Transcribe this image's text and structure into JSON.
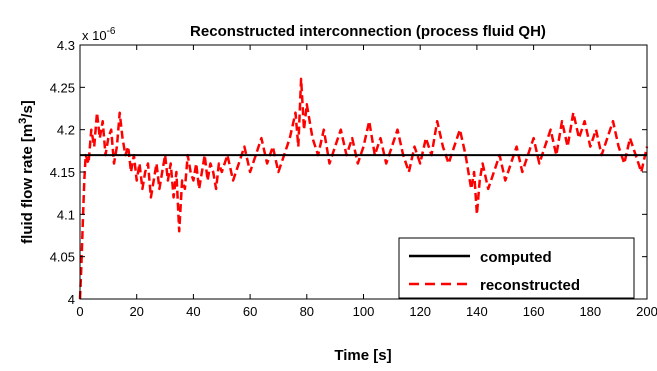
{
  "chart_data": {
    "type": "line",
    "title": "Reconstructed interconnection (process fluid QH)",
    "xlabel": "Time [s]",
    "ylabel_main": "fluid flow rate [m",
    "ylabel_sup": "3",
    "ylabel_tail": "/s]",
    "multiplier_base": "x 10",
    "multiplier_exp": "-6",
    "xlim": [
      0,
      200
    ],
    "ylim": [
      4.0,
      4.3
    ],
    "x_ticks": [
      "0",
      "20",
      "40",
      "60",
      "80",
      "100",
      "120",
      "140",
      "160",
      "180",
      "200"
    ],
    "y_ticks": [
      "4",
      "4.05",
      "4.1",
      "4.15",
      "4.2",
      "4.25",
      "4.3"
    ],
    "legend_position": "bottom-right",
    "series": [
      {
        "name": "computed",
        "color": "#000000",
        "style": "solid",
        "x": [
          0,
          200
        ],
        "y": [
          4.17,
          4.17
        ]
      },
      {
        "name": "reconstructed",
        "color": "#ff0000",
        "style": "dashed",
        "x": [
          0,
          0.5,
          1,
          1.5,
          2,
          3,
          4,
          5,
          6,
          7,
          8,
          9,
          10,
          11,
          12,
          13,
          14,
          15,
          16,
          17,
          18,
          19,
          20,
          21,
          22,
          23,
          24,
          25,
          26,
          27,
          28,
          29,
          30,
          31,
          32,
          33,
          34,
          35,
          36,
          37,
          38,
          39,
          40,
          41,
          42,
          43,
          44,
          45,
          46,
          47,
          48,
          49,
          50,
          52,
          54,
          56,
          58,
          60,
          62,
          64,
          66,
          68,
          70,
          72,
          74,
          76,
          77,
          78,
          79,
          80,
          82,
          84,
          86,
          88,
          90,
          92,
          94,
          96,
          98,
          100,
          102,
          104,
          106,
          108,
          110,
          112,
          114,
          116,
          118,
          120,
          122,
          124,
          126,
          128,
          130,
          132,
          134,
          136,
          138,
          139,
          140,
          141,
          142,
          144,
          146,
          148,
          150,
          152,
          154,
          156,
          158,
          160,
          162,
          164,
          166,
          168,
          170,
          172,
          174,
          176,
          178,
          180,
          182,
          184,
          186,
          188,
          190,
          192,
          194,
          196,
          198,
          200
        ],
        "y": [
          4.0,
          4.04,
          4.09,
          4.14,
          4.17,
          4.16,
          4.2,
          4.18,
          4.22,
          4.19,
          4.21,
          4.17,
          4.19,
          4.2,
          4.16,
          4.18,
          4.22,
          4.19,
          4.17,
          4.18,
          4.15,
          4.17,
          4.14,
          4.16,
          4.13,
          4.15,
          4.16,
          4.12,
          4.14,
          4.16,
          4.13,
          4.15,
          4.17,
          4.14,
          4.16,
          4.12,
          4.15,
          4.08,
          4.14,
          4.13,
          4.17,
          4.15,
          4.14,
          4.16,
          4.13,
          4.15,
          4.17,
          4.14,
          4.16,
          4.15,
          4.13,
          4.16,
          4.15,
          4.17,
          4.14,
          4.16,
          4.18,
          4.15,
          4.17,
          4.19,
          4.16,
          4.18,
          4.15,
          4.17,
          4.19,
          4.22,
          4.18,
          4.26,
          4.2,
          4.23,
          4.19,
          4.17,
          4.2,
          4.16,
          4.18,
          4.2,
          4.17,
          4.19,
          4.16,
          4.18,
          4.21,
          4.17,
          4.19,
          4.16,
          4.18,
          4.2,
          4.17,
          4.15,
          4.18,
          4.16,
          4.19,
          4.17,
          4.21,
          4.18,
          4.16,
          4.18,
          4.2,
          4.17,
          4.13,
          4.15,
          4.1,
          4.14,
          4.16,
          4.13,
          4.15,
          4.17,
          4.14,
          4.16,
          4.18,
          4.15,
          4.17,
          4.19,
          4.16,
          4.18,
          4.2,
          4.17,
          4.21,
          4.18,
          4.22,
          4.19,
          4.21,
          4.18,
          4.2,
          4.17,
          4.19,
          4.21,
          4.18,
          4.16,
          4.19,
          4.17,
          4.15,
          4.18
        ]
      }
    ]
  }
}
